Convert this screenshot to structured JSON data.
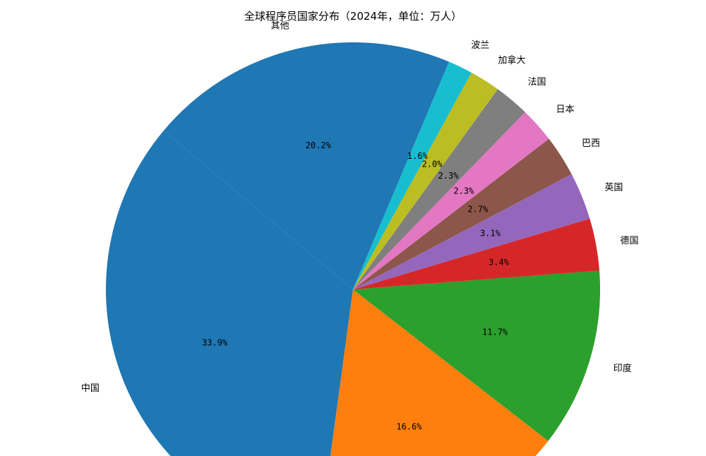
{
  "chart_data": {
    "type": "pie",
    "title": "全球程序员国家分布（2024年，单位：万人）",
    "start_angle_deg": 140,
    "direction": "counterclockwise",
    "slices": [
      {
        "label": "中国",
        "percent": 33.9,
        "pct_label": "33.9%",
        "color": "#1f77b4"
      },
      {
        "label": "",
        "percent": 16.6,
        "pct_label": "16.6%",
        "color": "#ff7f0e"
      },
      {
        "label": "印度",
        "percent": 11.7,
        "pct_label": "11.7%",
        "color": "#2ca02c"
      },
      {
        "label": "德国",
        "percent": 3.4,
        "pct_label": "3.4%",
        "color": "#d62728"
      },
      {
        "label": "英国",
        "percent": 3.1,
        "pct_label": "3.1%",
        "color": "#9467bd"
      },
      {
        "label": "巴西",
        "percent": 2.7,
        "pct_label": "2.7%",
        "color": "#8c564b"
      },
      {
        "label": "日本",
        "percent": 2.3,
        "pct_label": "2.3%",
        "color": "#e377c2"
      },
      {
        "label": "法国",
        "percent": 2.3,
        "pct_label": "2.3%",
        "color": "#7f7f7f"
      },
      {
        "label": "加拿大",
        "percent": 2.0,
        "pct_label": "2.0%",
        "color": "#bcbd22"
      },
      {
        "label": "波兰",
        "percent": 1.6,
        "pct_label": "1.6%",
        "color": "#17becf"
      },
      {
        "label": "其他",
        "percent": 20.2,
        "pct_label": "20.2%",
        "color": "#1f77b4"
      }
    ]
  }
}
